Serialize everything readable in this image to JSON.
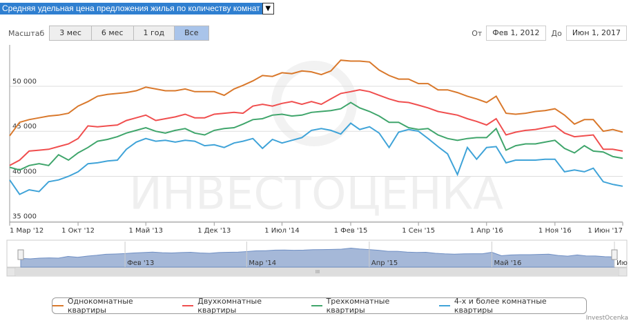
{
  "selector": "Средняя удельная цена предложения жилья по количеству комнат",
  "zoom": {
    "label": "Масштаб",
    "buttons": [
      "3 мес",
      "6 мес",
      "1 год",
      "Все"
    ],
    "active": 3
  },
  "range": {
    "from_label": "От",
    "from": "Фев 1, 2012",
    "to_label": "До",
    "to": "Июн 1, 2017"
  },
  "watermark": "ИНВЕСТОЦЕНКА",
  "credit": "InvestOcenka",
  "navigator": {
    "labels": [
      {
        "value": "2013-02-01",
        "label": "Фев '13"
      },
      {
        "value": "2014-03-01",
        "label": "Мар '14"
      },
      {
        "value": "2015-04-01",
        "label": "Апр '15"
      },
      {
        "value": "2016-05-01",
        "label": "Май '16"
      },
      {
        "value": "2017-06-01",
        "label": "Ию"
      }
    ],
    "scroll_mark": "III"
  },
  "chart_data": {
    "type": "line",
    "x": [
      "2012-03-01",
      "2012-04-01",
      "2012-05-01",
      "2012-06-01",
      "2012-07-01",
      "2012-08-01",
      "2012-09-01",
      "2012-10-01",
      "2012-11-01",
      "2012-12-01",
      "2013-01-01",
      "2013-02-01",
      "2013-03-01",
      "2013-04-01",
      "2013-05-01",
      "2013-06-01",
      "2013-07-01",
      "2013-08-01",
      "2013-09-01",
      "2013-10-01",
      "2013-11-01",
      "2013-12-01",
      "2014-01-01",
      "2014-02-01",
      "2014-03-01",
      "2014-04-01",
      "2014-05-01",
      "2014-06-01",
      "2014-07-01",
      "2014-08-01",
      "2014-09-01",
      "2014-10-01",
      "2014-11-01",
      "2014-12-01",
      "2015-01-01",
      "2015-02-01",
      "2015-03-01",
      "2015-04-01",
      "2015-05-01",
      "2015-06-01",
      "2015-07-01",
      "2015-08-01",
      "2015-09-01",
      "2015-10-01",
      "2015-11-01",
      "2015-12-01",
      "2016-01-01",
      "2016-02-01",
      "2016-03-01",
      "2016-04-01",
      "2016-05-01",
      "2016-06-01",
      "2016-07-01",
      "2016-08-01",
      "2016-09-01",
      "2016-10-01",
      "2016-11-01",
      "2016-12-01",
      "2017-01-01",
      "2017-02-01",
      "2017-03-01",
      "2017-04-01",
      "2017-05-01",
      "2017-06-01"
    ],
    "series": [
      {
        "name": "Однокомнатные квартиры",
        "color": "#d9782b",
        "values": [
          44500,
          46000,
          46300,
          46500,
          46700,
          46800,
          47000,
          47800,
          48300,
          48900,
          49100,
          49200,
          49300,
          49500,
          49900,
          49700,
          49500,
          49500,
          49700,
          49400,
          49400,
          49400,
          49000,
          49700,
          50100,
          50600,
          51200,
          51100,
          51500,
          51400,
          51700,
          51600,
          51300,
          51700,
          52900,
          52800,
          52800,
          52700,
          51800,
          51200,
          50800,
          50800,
          50300,
          50300,
          49600,
          49600,
          49300,
          48900,
          48600,
          48200,
          48900,
          47000,
          46900,
          47000,
          47200,
          47300,
          47500,
          46800,
          45800,
          46300,
          46300,
          45000,
          45200,
          44900
        ]
      },
      {
        "name": "Двухкомнатные квартиры",
        "color": "#f04e4e",
        "values": [
          41200,
          41800,
          42800,
          42900,
          43000,
          43300,
          43600,
          44200,
          45600,
          45500,
          45600,
          45700,
          46200,
          46500,
          46800,
          46200,
          46400,
          46600,
          46900,
          46500,
          46500,
          46900,
          47000,
          47100,
          47000,
          47800,
          48000,
          47800,
          48100,
          48300,
          48000,
          48300,
          48000,
          48600,
          49200,
          49400,
          49600,
          49400,
          49000,
          48600,
          48300,
          48200,
          47900,
          47600,
          47200,
          47000,
          46800,
          46400,
          46100,
          45700,
          46400,
          44600,
          44900,
          45100,
          45200,
          45400,
          45600,
          44800,
          44400,
          44500,
          44600,
          43000,
          43000,
          42800
        ]
      },
      {
        "name": "Трехкомнатные квартиры",
        "color": "#3fa56b",
        "values": [
          41000,
          40700,
          41200,
          41400,
          41200,
          42400,
          41800,
          42600,
          43200,
          43900,
          44100,
          44400,
          44800,
          45100,
          45400,
          45000,
          44800,
          45100,
          45300,
          44800,
          44600,
          45100,
          45300,
          45400,
          45800,
          46300,
          46400,
          46800,
          46900,
          46700,
          46800,
          47100,
          47200,
          47300,
          47500,
          48200,
          47600,
          47200,
          46700,
          46000,
          46000,
          45400,
          45200,
          45300,
          44600,
          44200,
          44000,
          44200,
          44300,
          44300,
          45300,
          42900,
          43400,
          43600,
          43600,
          43800,
          44000,
          43100,
          42600,
          43400,
          42800,
          42700,
          42200,
          42000
        ]
      },
      {
        "name": "4-х и более комнатные квартиры",
        "color": "#3fa3d8",
        "values": [
          39600,
          38000,
          38500,
          38300,
          39400,
          39600,
          40000,
          40500,
          41400,
          41500,
          41700,
          41800,
          43000,
          43800,
          44200,
          43900,
          44000,
          43800,
          44000,
          43900,
          43400,
          43500,
          43200,
          43700,
          43900,
          44200,
          43100,
          44100,
          43700,
          44000,
          44300,
          45100,
          45300,
          45100,
          44700,
          45900,
          45200,
          45500,
          44800,
          43200,
          44900,
          45200,
          45000,
          44200,
          43300,
          42500,
          40200,
          43200,
          41900,
          43200,
          43300,
          41500,
          41800,
          41800,
          41800,
          41900,
          41900,
          40500,
          40700,
          40500,
          40900,
          39400,
          39100,
          38900
        ]
      }
    ],
    "xlim": [
      "2012-03-01",
      "2017-06-01"
    ],
    "xticks": [
      {
        "value": "2012-03-01",
        "label": "1 Мар '12"
      },
      {
        "value": "2012-10-01",
        "label": "1 Окт '12"
      },
      {
        "value": "2013-05-01",
        "label": "1 Май '13"
      },
      {
        "value": "2013-12-01",
        "label": "1 Дек '13"
      },
      {
        "value": "2014-07-01",
        "label": "1 Июл '14"
      },
      {
        "value": "2015-02-01",
        "label": "1 Фев '15"
      },
      {
        "value": "2015-09-01",
        "label": "1 Сен '15"
      },
      {
        "value": "2016-04-01",
        "label": "1 Апр '16"
      },
      {
        "value": "2016-11-01",
        "label": "1 Ноя '16"
      },
      {
        "value": "2017-06-01",
        "label": "1 Июн '17"
      }
    ],
    "ylim": [
      34900,
      54600
    ],
    "yticks": [
      {
        "value": 35000,
        "label": "35 000"
      },
      {
        "value": 40000,
        "label": "40 000"
      },
      {
        "value": 45000,
        "label": "45 000"
      },
      {
        "value": 50000,
        "label": "50 000"
      }
    ],
    "grid": true,
    "legend": "bottom"
  }
}
